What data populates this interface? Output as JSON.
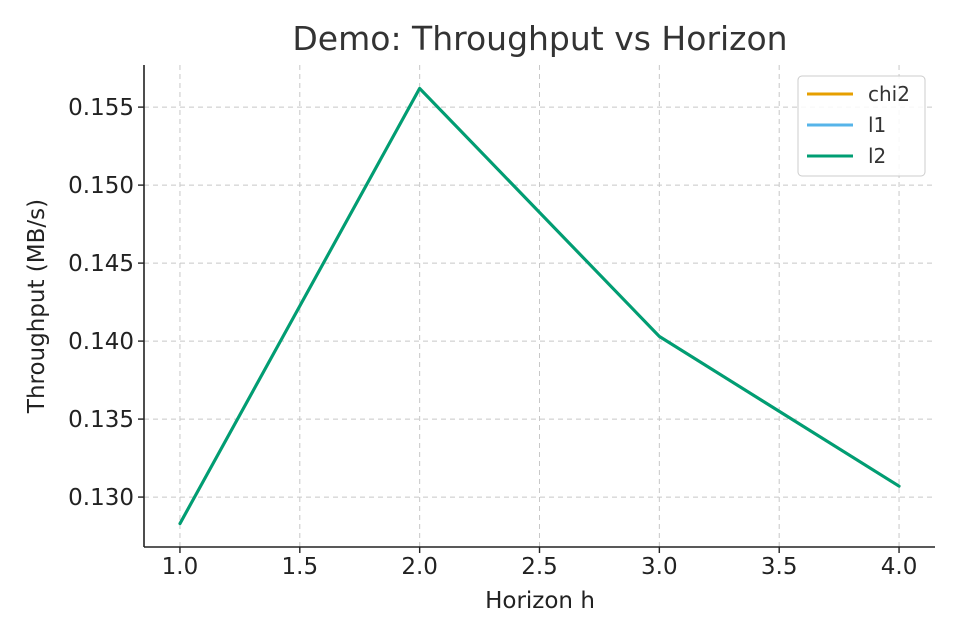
{
  "chart_data": {
    "type": "line",
    "title": "Demo: Throughput vs Horizon",
    "xlabel": "Horizon h",
    "ylabel": "Throughput (MB/s)",
    "x": [
      1.0,
      2.0,
      3.0,
      4.0
    ],
    "xlim": [
      0.85,
      4.15
    ],
    "ylim": [
      0.1268,
      0.1577
    ],
    "xticks": [
      "1.0",
      "1.5",
      "2.0",
      "2.5",
      "3.0",
      "3.5",
      "4.0"
    ],
    "yticks": [
      "0.130",
      "0.135",
      "0.140",
      "0.145",
      "0.150",
      "0.155"
    ],
    "grid": true,
    "legend_position": "top-right",
    "series": [
      {
        "name": "chi2",
        "color": "#E69F00",
        "values": [
          0.1283,
          0.1562,
          0.1403,
          0.1307
        ]
      },
      {
        "name": "l1",
        "color": "#56B4E9",
        "values": [
          0.1283,
          0.1562,
          0.1403,
          0.1307
        ]
      },
      {
        "name": "l2",
        "color": "#009E73",
        "values": [
          0.1283,
          0.1562,
          0.1403,
          0.1307
        ]
      }
    ]
  }
}
